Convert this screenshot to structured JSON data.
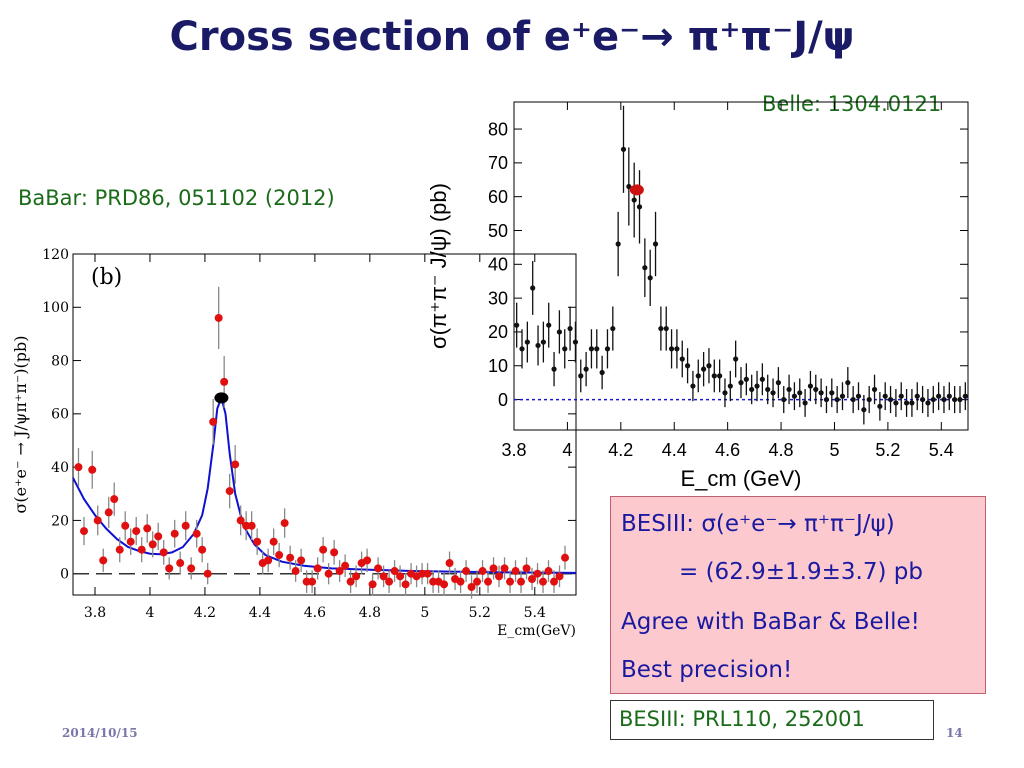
{
  "slide": {
    "title": "Cross section of e⁺e⁻→ π⁺π⁻J/ψ",
    "belle_ref": "Belle: 1304.0121",
    "babar_ref": "BaBar:  PRD86, 051102 (2012)",
    "besiii_box": {
      "line1": "BESIII: σ(e⁺e⁻→ π⁺π⁻J/ψ)",
      "line2": "= (62.9±1.9±3.7) pb",
      "line3": "Agree with BaBar & Belle!",
      "line4": "Best precision!"
    },
    "besiii_ref": "BESIII: PRL110, 252001",
    "date": "2014/10/15",
    "page": "14"
  },
  "colors": {
    "title": "#1a1a66",
    "reference_text": "#1a6b1a",
    "box_text": "#1a1aa0",
    "box_fill": "#fcc9cf",
    "babar_points": "#e01010",
    "babar_fit": "#1010d0",
    "belle_points": "#111111",
    "besiii_point_on_belle": "#cc1111",
    "belle_zero_line": "#1a1acc"
  },
  "chart_data": [
    {
      "id": "babar",
      "type": "scatter",
      "panel_label": "(b)",
      "xlabel": "E_cm(GeV)",
      "ylabel": "σ(e⁺e⁻ → J/ψπ⁺π⁻)(pb)",
      "xlim": [
        3.72,
        5.55
      ],
      "ylim": [
        -8,
        120
      ],
      "xticks": [
        3.8,
        4,
        4.2,
        4.4,
        4.6,
        4.8,
        5,
        5.2,
        5.4
      ],
      "yticks": [
        0,
        20,
        40,
        60,
        80,
        100,
        120
      ],
      "series": [
        {
          "x": [
            3.74,
            3.76,
            3.79,
            3.81,
            3.83,
            3.85,
            3.87,
            3.89,
            3.91,
            3.93,
            3.95,
            3.97,
            3.99,
            4.01,
            4.03,
            4.05,
            4.07,
            4.09,
            4.11,
            4.13,
            4.15,
            4.17,
            4.19,
            4.21,
            4.23,
            4.25,
            4.27,
            4.29,
            4.31,
            4.33,
            4.35,
            4.37,
            4.39,
            4.41,
            4.43,
            4.45,
            4.47,
            4.49,
            4.51,
            4.53,
            4.55,
            4.57,
            4.59,
            4.61,
            4.63,
            4.65,
            4.67,
            4.69,
            4.71,
            4.73,
            4.75,
            4.77,
            4.79,
            4.81,
            4.83,
            4.85,
            4.87,
            4.89,
            4.91,
            4.93,
            4.95,
            4.97,
            4.99,
            5.01,
            5.03,
            5.05,
            5.07,
            5.09,
            5.11,
            5.13,
            5.15,
            5.17,
            5.19,
            5.21,
            5.23,
            5.25,
            5.27,
            5.29,
            5.31,
            5.33,
            5.35,
            5.37,
            5.39,
            5.41,
            5.43,
            5.45,
            5.47,
            5.49,
            5.51
          ],
          "y": [
            40,
            16,
            39,
            20,
            5,
            23,
            28,
            9,
            18,
            12,
            16,
            9,
            17,
            11,
            14,
            8,
            2,
            15,
            4,
            18,
            2,
            15,
            9,
            0,
            57,
            96,
            72,
            31,
            41,
            20,
            18,
            18,
            12,
            4,
            5,
            12,
            7,
            19,
            6,
            1,
            5,
            -3,
            -3,
            2,
            9,
            0,
            8,
            1,
            3,
            -3,
            -1,
            4,
            5,
            -4,
            2,
            -1,
            -3,
            1,
            -1,
            -4,
            0,
            -1,
            0,
            0,
            -3,
            -3,
            -4,
            4,
            -2,
            -3,
            1,
            -5,
            -3,
            1,
            -3,
            2,
            -1,
            2,
            -3,
            1,
            -3,
            2,
            -2,
            0,
            -3,
            1,
            -3,
            -1,
            6
          ]
        }
      ],
      "fit": {
        "x": [
          3.72,
          3.76,
          3.8,
          3.84,
          3.88,
          3.92,
          3.96,
          4.0,
          4.04,
          4.08,
          4.12,
          4.16,
          4.19,
          4.21,
          4.23,
          4.245,
          4.26,
          4.275,
          4.29,
          4.31,
          4.34,
          4.38,
          4.42,
          4.48,
          4.56,
          4.66,
          4.8,
          4.95,
          5.1,
          5.3,
          5.55
        ],
        "y": [
          36,
          28,
          22,
          17,
          13,
          10,
          8.5,
          7.5,
          7.3,
          8,
          10,
          15,
          22,
          32,
          48,
          62,
          66,
          60,
          45,
          30,
          18,
          11,
          7,
          4.5,
          3,
          2,
          1.5,
          1,
          0.8,
          0.5,
          0.3
        ]
      },
      "highlight_point": {
        "x": 4.26,
        "y": 66
      },
      "zero_line": 0
    },
    {
      "id": "belle",
      "type": "scatter",
      "xlabel": "E_cm (GeV)",
      "ylabel": "σ(π⁺π⁻ J/ψ) (pb)",
      "xlim": [
        3.8,
        5.5
      ],
      "ylim": [
        -9,
        88
      ],
      "xticks": [
        3.8,
        4,
        4.2,
        4.4,
        4.6,
        4.8,
        5,
        5.2,
        5.4
      ],
      "yticks": [
        0,
        10,
        20,
        30,
        40,
        50,
        60,
        70,
        80
      ],
      "series": [
        {
          "x": [
            3.81,
            3.83,
            3.85,
            3.87,
            3.89,
            3.91,
            3.93,
            3.95,
            3.97,
            3.99,
            4.01,
            4.03,
            4.05,
            4.07,
            4.09,
            4.11,
            4.13,
            4.15,
            4.17,
            4.19,
            4.21,
            4.23,
            4.25,
            4.27,
            4.29,
            4.31,
            4.33,
            4.35,
            4.37,
            4.39,
            4.41,
            4.43,
            4.45,
            4.47,
            4.49,
            4.51,
            4.53,
            4.55,
            4.57,
            4.59,
            4.61,
            4.63,
            4.65,
            4.67,
            4.69,
            4.71,
            4.73,
            4.75,
            4.77,
            4.79,
            4.81,
            4.83,
            4.85,
            4.87,
            4.89,
            4.91,
            4.93,
            4.95,
            4.97,
            4.99,
            5.01,
            5.03,
            5.05,
            5.07,
            5.09,
            5.11,
            5.13,
            5.15,
            5.17,
            5.19,
            5.21,
            5.23,
            5.25,
            5.27,
            5.29,
            5.31,
            5.33,
            5.35,
            5.37,
            5.39,
            5.41,
            5.43,
            5.45,
            5.47,
            5.49
          ],
          "y": [
            22,
            15,
            17,
            33,
            16,
            17,
            22,
            9,
            20,
            15,
            21,
            17,
            7,
            9,
            15,
            15,
            8,
            15,
            21,
            46,
            74,
            63,
            59,
            57,
            39,
            36,
            46,
            21,
            21,
            15,
            15,
            12,
            10,
            4,
            7,
            9,
            10,
            7,
            7,
            2,
            4,
            12,
            5,
            6,
            3,
            4,
            6,
            3,
            2,
            5,
            0,
            3,
            1,
            2,
            -1,
            4,
            3,
            2,
            0,
            2,
            0,
            1,
            5,
            0,
            1,
            -3,
            0,
            3,
            -2,
            1,
            0,
            -1,
            1,
            -1,
            -1,
            1,
            0,
            -1,
            0,
            1,
            0,
            1,
            0,
            0,
            1
          ]
        }
      ],
      "highlight_point": {
        "x": 4.26,
        "y": 62
      },
      "zero_line": 0
    }
  ]
}
